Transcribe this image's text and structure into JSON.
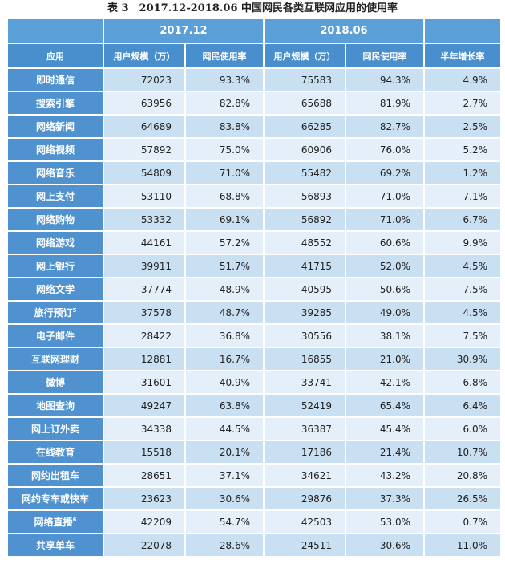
{
  "title": "表 3　2017.12-2018.06 中国网民各类互联网应用的使用率",
  "period_headers": [
    "2017.12",
    "2018.06"
  ],
  "column_headers": [
    "应用",
    "用户规模（万）",
    "网民使用率",
    "用户规模（万）",
    "网民使用率",
    "半年增长率"
  ],
  "rows": [
    {
      "app": "即时通信",
      "sup": "",
      "u1": "72023",
      "r1": "93.3%",
      "u2": "75583",
      "r2": "94.3%",
      "g": "4.9%"
    },
    {
      "app": "搜索引擎",
      "sup": "",
      "u1": "63956",
      "r1": "82.8%",
      "u2": "65688",
      "r2": "81.9%",
      "g": "2.7%"
    },
    {
      "app": "网络新闻",
      "sup": "",
      "u1": "64689",
      "r1": "83.8%",
      "u2": "66285",
      "r2": "82.7%",
      "g": "2.5%"
    },
    {
      "app": "网络视频",
      "sup": "",
      "u1": "57892",
      "r1": "75.0%",
      "u2": "60906",
      "r2": "76.0%",
      "g": "5.2%"
    },
    {
      "app": "网络音乐",
      "sup": "",
      "u1": "54809",
      "r1": "71.0%",
      "u2": "55482",
      "r2": "69.2%",
      "g": "1.2%"
    },
    {
      "app": "网上支付",
      "sup": "",
      "u1": "53110",
      "r1": "68.8%",
      "u2": "56893",
      "r2": "71.0%",
      "g": "7.1%"
    },
    {
      "app": "网络购物",
      "sup": "",
      "u1": "53332",
      "r1": "69.1%",
      "u2": "56892",
      "r2": "71.0%",
      "g": "6.7%"
    },
    {
      "app": "网络游戏",
      "sup": "",
      "u1": "44161",
      "r1": "57.2%",
      "u2": "48552",
      "r2": "60.6%",
      "g": "9.9%"
    },
    {
      "app": "网上银行",
      "sup": "",
      "u1": "39911",
      "r1": "51.7%",
      "u2": "41715",
      "r2": "52.0%",
      "g": "4.5%"
    },
    {
      "app": "网络文学",
      "sup": "",
      "u1": "37774",
      "r1": "48.9%",
      "u2": "40595",
      "r2": "50.6%",
      "g": "7.5%"
    },
    {
      "app": "旅行预订",
      "sup": "5",
      "u1": "37578",
      "r1": "48.7%",
      "u2": "39285",
      "r2": "49.0%",
      "g": "4.5%"
    },
    {
      "app": "电子邮件",
      "sup": "",
      "u1": "28422",
      "r1": "36.8%",
      "u2": "30556",
      "r2": "38.1%",
      "g": "7.5%"
    },
    {
      "app": "互联网理财",
      "sup": "",
      "u1": "12881",
      "r1": "16.7%",
      "u2": "16855",
      "r2": "21.0%",
      "g": "30.9%"
    },
    {
      "app": "微博",
      "sup": "",
      "u1": "31601",
      "r1": "40.9%",
      "u2": "33741",
      "r2": "42.1%",
      "g": "6.8%"
    },
    {
      "app": "地图查询",
      "sup": "",
      "u1": "49247",
      "r1": "63.8%",
      "u2": "52419",
      "r2": "65.4%",
      "g": "6.4%"
    },
    {
      "app": "网上订外卖",
      "sup": "",
      "u1": "34338",
      "r1": "44.5%",
      "u2": "36387",
      "r2": "45.4%",
      "g": "6.0%"
    },
    {
      "app": "在线教育",
      "sup": "",
      "u1": "15518",
      "r1": "20.1%",
      "u2": "17186",
      "r2": "21.4%",
      "g": "10.7%"
    },
    {
      "app": "网约出租车",
      "sup": "",
      "u1": "28651",
      "r1": "37.1%",
      "u2": "34621",
      "r2": "43.2%",
      "g": "20.8%"
    },
    {
      "app": "网约专车或快车",
      "sup": "",
      "u1": "23623",
      "r1": "30.6%",
      "u2": "29876",
      "r2": "37.3%",
      "g": "26.5%"
    },
    {
      "app": "网络直播",
      "sup": "6",
      "u1": "42209",
      "r1": "54.7%",
      "u2": "42503",
      "r2": "53.0%",
      "g": "0.7%"
    },
    {
      "app": "共享单车",
      "sup": "",
      "u1": "22078",
      "r1": "28.6%",
      "u2": "24511",
      "r2": "30.6%",
      "g": "11.0%"
    }
  ]
}
